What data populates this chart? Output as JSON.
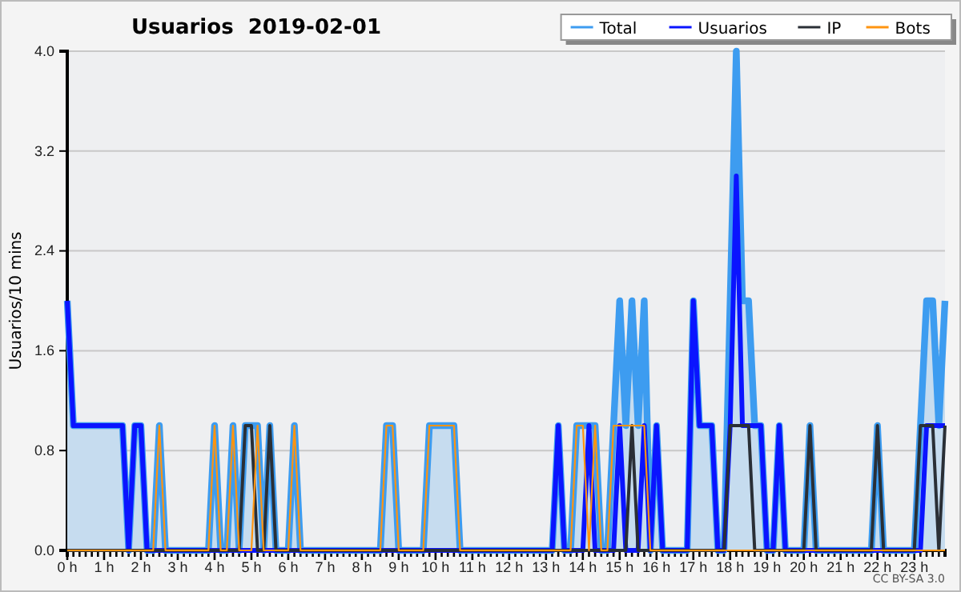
{
  "chart_data": {
    "type": "line",
    "title": "Usuarios  2019-02-01",
    "ylabel": "Usuarios/10 mins",
    "categories": [
      "0 h",
      null,
      null,
      null,
      null,
      null,
      "1 h",
      null,
      null,
      null,
      null,
      null,
      "2 h",
      null,
      null,
      null,
      null,
      null,
      "3 h",
      null,
      null,
      null,
      null,
      null,
      "4 h",
      null,
      null,
      null,
      null,
      null,
      "5 h",
      null,
      null,
      null,
      null,
      null,
      "6 h",
      null,
      null,
      null,
      null,
      null,
      "7 h",
      null,
      null,
      null,
      null,
      null,
      "8 h",
      null,
      null,
      null,
      null,
      null,
      "9 h",
      null,
      null,
      null,
      null,
      null,
      "10 h",
      null,
      null,
      null,
      null,
      null,
      "11 h",
      null,
      null,
      null,
      null,
      null,
      "12 h",
      null,
      null,
      null,
      null,
      null,
      "13 h",
      null,
      null,
      null,
      null,
      null,
      "14 h",
      null,
      null,
      null,
      null,
      null,
      "15 h",
      null,
      null,
      null,
      null,
      null,
      "16 h",
      null,
      null,
      null,
      null,
      null,
      "17 h",
      null,
      null,
      null,
      null,
      null,
      "18 h",
      null,
      null,
      null,
      null,
      null,
      "19 h",
      null,
      null,
      null,
      null,
      null,
      "20 h",
      null,
      null,
      null,
      null,
      null,
      "21 h",
      null,
      null,
      null,
      null,
      null,
      "22 h",
      null,
      null,
      null,
      null,
      null,
      "23 h",
      null,
      null,
      null,
      null,
      null
    ],
    "series": [
      {
        "name": "Total",
        "type": "area",
        "color": "#3d9cf0",
        "values": [
          2,
          1,
          1,
          1,
          1,
          1,
          1,
          1,
          1,
          1,
          0,
          1,
          1,
          0,
          0,
          1,
          0,
          0,
          0,
          0,
          0,
          0,
          0,
          0,
          1,
          0,
          0,
          1,
          0,
          1,
          1,
          1,
          0,
          1,
          0,
          0,
          0,
          1,
          0,
          0,
          0,
          0,
          0,
          0,
          0,
          0,
          0,
          0,
          0,
          0,
          0,
          0,
          1,
          1,
          0,
          0,
          0,
          0,
          0,
          1,
          1,
          1,
          1,
          1,
          0,
          0,
          0,
          0,
          0,
          0,
          0,
          0,
          0,
          0,
          0,
          0,
          0,
          0,
          0,
          0,
          1,
          0,
          0,
          1,
          1,
          1,
          1,
          0,
          0,
          1,
          2,
          1,
          2,
          1,
          2,
          0,
          1,
          0,
          0,
          0,
          0,
          0,
          2,
          1,
          1,
          1,
          0,
          0,
          2,
          4,
          2,
          2,
          1,
          1,
          0,
          0,
          1,
          0,
          0,
          0,
          0,
          1,
          0,
          0,
          0,
          0,
          0,
          0,
          0,
          0,
          0,
          0,
          1,
          0,
          0,
          0,
          0,
          0,
          0,
          1,
          2,
          2,
          1,
          2
        ]
      },
      {
        "name": "Usuarios",
        "type": "line",
        "color": "#0a14ff",
        "values": [
          2,
          1,
          1,
          1,
          1,
          1,
          1,
          1,
          1,
          1,
          0,
          1,
          1,
          0,
          0,
          0,
          0,
          0,
          0,
          0,
          0,
          0,
          0,
          0,
          0,
          0,
          0,
          0,
          0,
          0,
          0,
          0,
          0,
          0,
          0,
          0,
          0,
          0,
          0,
          0,
          0,
          0,
          0,
          0,
          0,
          0,
          0,
          0,
          0,
          0,
          0,
          0,
          0,
          0,
          0,
          0,
          0,
          0,
          0,
          0,
          0,
          0,
          0,
          0,
          0,
          0,
          0,
          0,
          0,
          0,
          0,
          0,
          0,
          0,
          0,
          0,
          0,
          0,
          0,
          0,
          1,
          0,
          0,
          0,
          0,
          1,
          0,
          0,
          0,
          0,
          1,
          0,
          0,
          0,
          1,
          0,
          1,
          0,
          0,
          0,
          0,
          0,
          2,
          1,
          1,
          1,
          0,
          0,
          1,
          3,
          1,
          1,
          1,
          1,
          0,
          0,
          1,
          0,
          0,
          0,
          0,
          0,
          0,
          0,
          0,
          0,
          0,
          0,
          0,
          0,
          0,
          0,
          0,
          0,
          0,
          0,
          0,
          0,
          0,
          0,
          1,
          1,
          1,
          1
        ]
      },
      {
        "name": "IP",
        "type": "line",
        "color": "#2a2f36",
        "values": [
          0,
          0,
          0,
          0,
          0,
          0,
          0,
          0,
          0,
          0,
          0,
          0,
          0,
          0,
          0,
          0,
          0,
          0,
          0,
          0,
          0,
          0,
          0,
          0,
          0,
          0,
          0,
          0,
          0,
          1,
          1,
          0,
          0,
          1,
          0,
          0,
          0,
          0,
          0,
          0,
          0,
          0,
          0,
          0,
          0,
          0,
          0,
          0,
          0,
          0,
          0,
          0,
          0,
          0,
          0,
          0,
          0,
          0,
          0,
          0,
          0,
          0,
          0,
          0,
          0,
          0,
          0,
          0,
          0,
          0,
          0,
          0,
          0,
          0,
          0,
          0,
          0,
          0,
          0,
          0,
          0,
          0,
          0,
          0,
          0,
          0,
          0,
          0,
          0,
          0,
          0,
          0,
          1,
          0,
          0,
          0,
          0,
          0,
          0,
          0,
          0,
          0,
          0,
          0,
          0,
          0,
          0,
          0,
          1,
          1,
          1,
          1,
          0,
          0,
          0,
          0,
          0,
          0,
          0,
          0,
          0,
          1,
          0,
          0,
          0,
          0,
          0,
          0,
          0,
          0,
          0,
          0,
          1,
          0,
          0,
          0,
          0,
          0,
          0,
          1,
          1,
          1,
          0,
          1
        ]
      },
      {
        "name": "Bots",
        "type": "line",
        "color": "#ff9410",
        "values": [
          0,
          0,
          0,
          0,
          0,
          0,
          0,
          0,
          0,
          0,
          0,
          0,
          0,
          0,
          0,
          1,
          0,
          0,
          0,
          0,
          0,
          0,
          0,
          0,
          1,
          0,
          0,
          1,
          0,
          0,
          0,
          1,
          0,
          0,
          0,
          0,
          0,
          1,
          0,
          0,
          0,
          0,
          0,
          0,
          0,
          0,
          0,
          0,
          0,
          0,
          0,
          0,
          1,
          1,
          0,
          0,
          0,
          0,
          0,
          1,
          1,
          1,
          1,
          1,
          0,
          0,
          0,
          0,
          0,
          0,
          0,
          0,
          0,
          0,
          0,
          0,
          0,
          0,
          0,
          0,
          0,
          0,
          0,
          1,
          1,
          0,
          1,
          0,
          0,
          1,
          1,
          1,
          1,
          1,
          1,
          0,
          0,
          0,
          0,
          0,
          0,
          0,
          0,
          0,
          0,
          0,
          0,
          0,
          0,
          0,
          0,
          0,
          0,
          0,
          0,
          0,
          0,
          0,
          0,
          0,
          0,
          0,
          0,
          0,
          0,
          0,
          0,
          0,
          0,
          0,
          0,
          0,
          0,
          0,
          0,
          0,
          0,
          0,
          0,
          0,
          0,
          0,
          0,
          0
        ]
      }
    ],
    "ylim": [
      0,
      4
    ],
    "yticks": [
      {
        "value": 0,
        "label": "0.0"
      },
      {
        "value": 0.8,
        "label": "0.8"
      },
      {
        "value": 1.6,
        "label": "1.6"
      },
      {
        "value": 2.4,
        "label": "2.4"
      },
      {
        "value": 3.2,
        "label": "3.2"
      },
      {
        "value": 4,
        "label": "4.0"
      }
    ],
    "grid": "y",
    "legend": "top right",
    "annotations": [
      "CC BY-SA 3.0"
    ]
  }
}
